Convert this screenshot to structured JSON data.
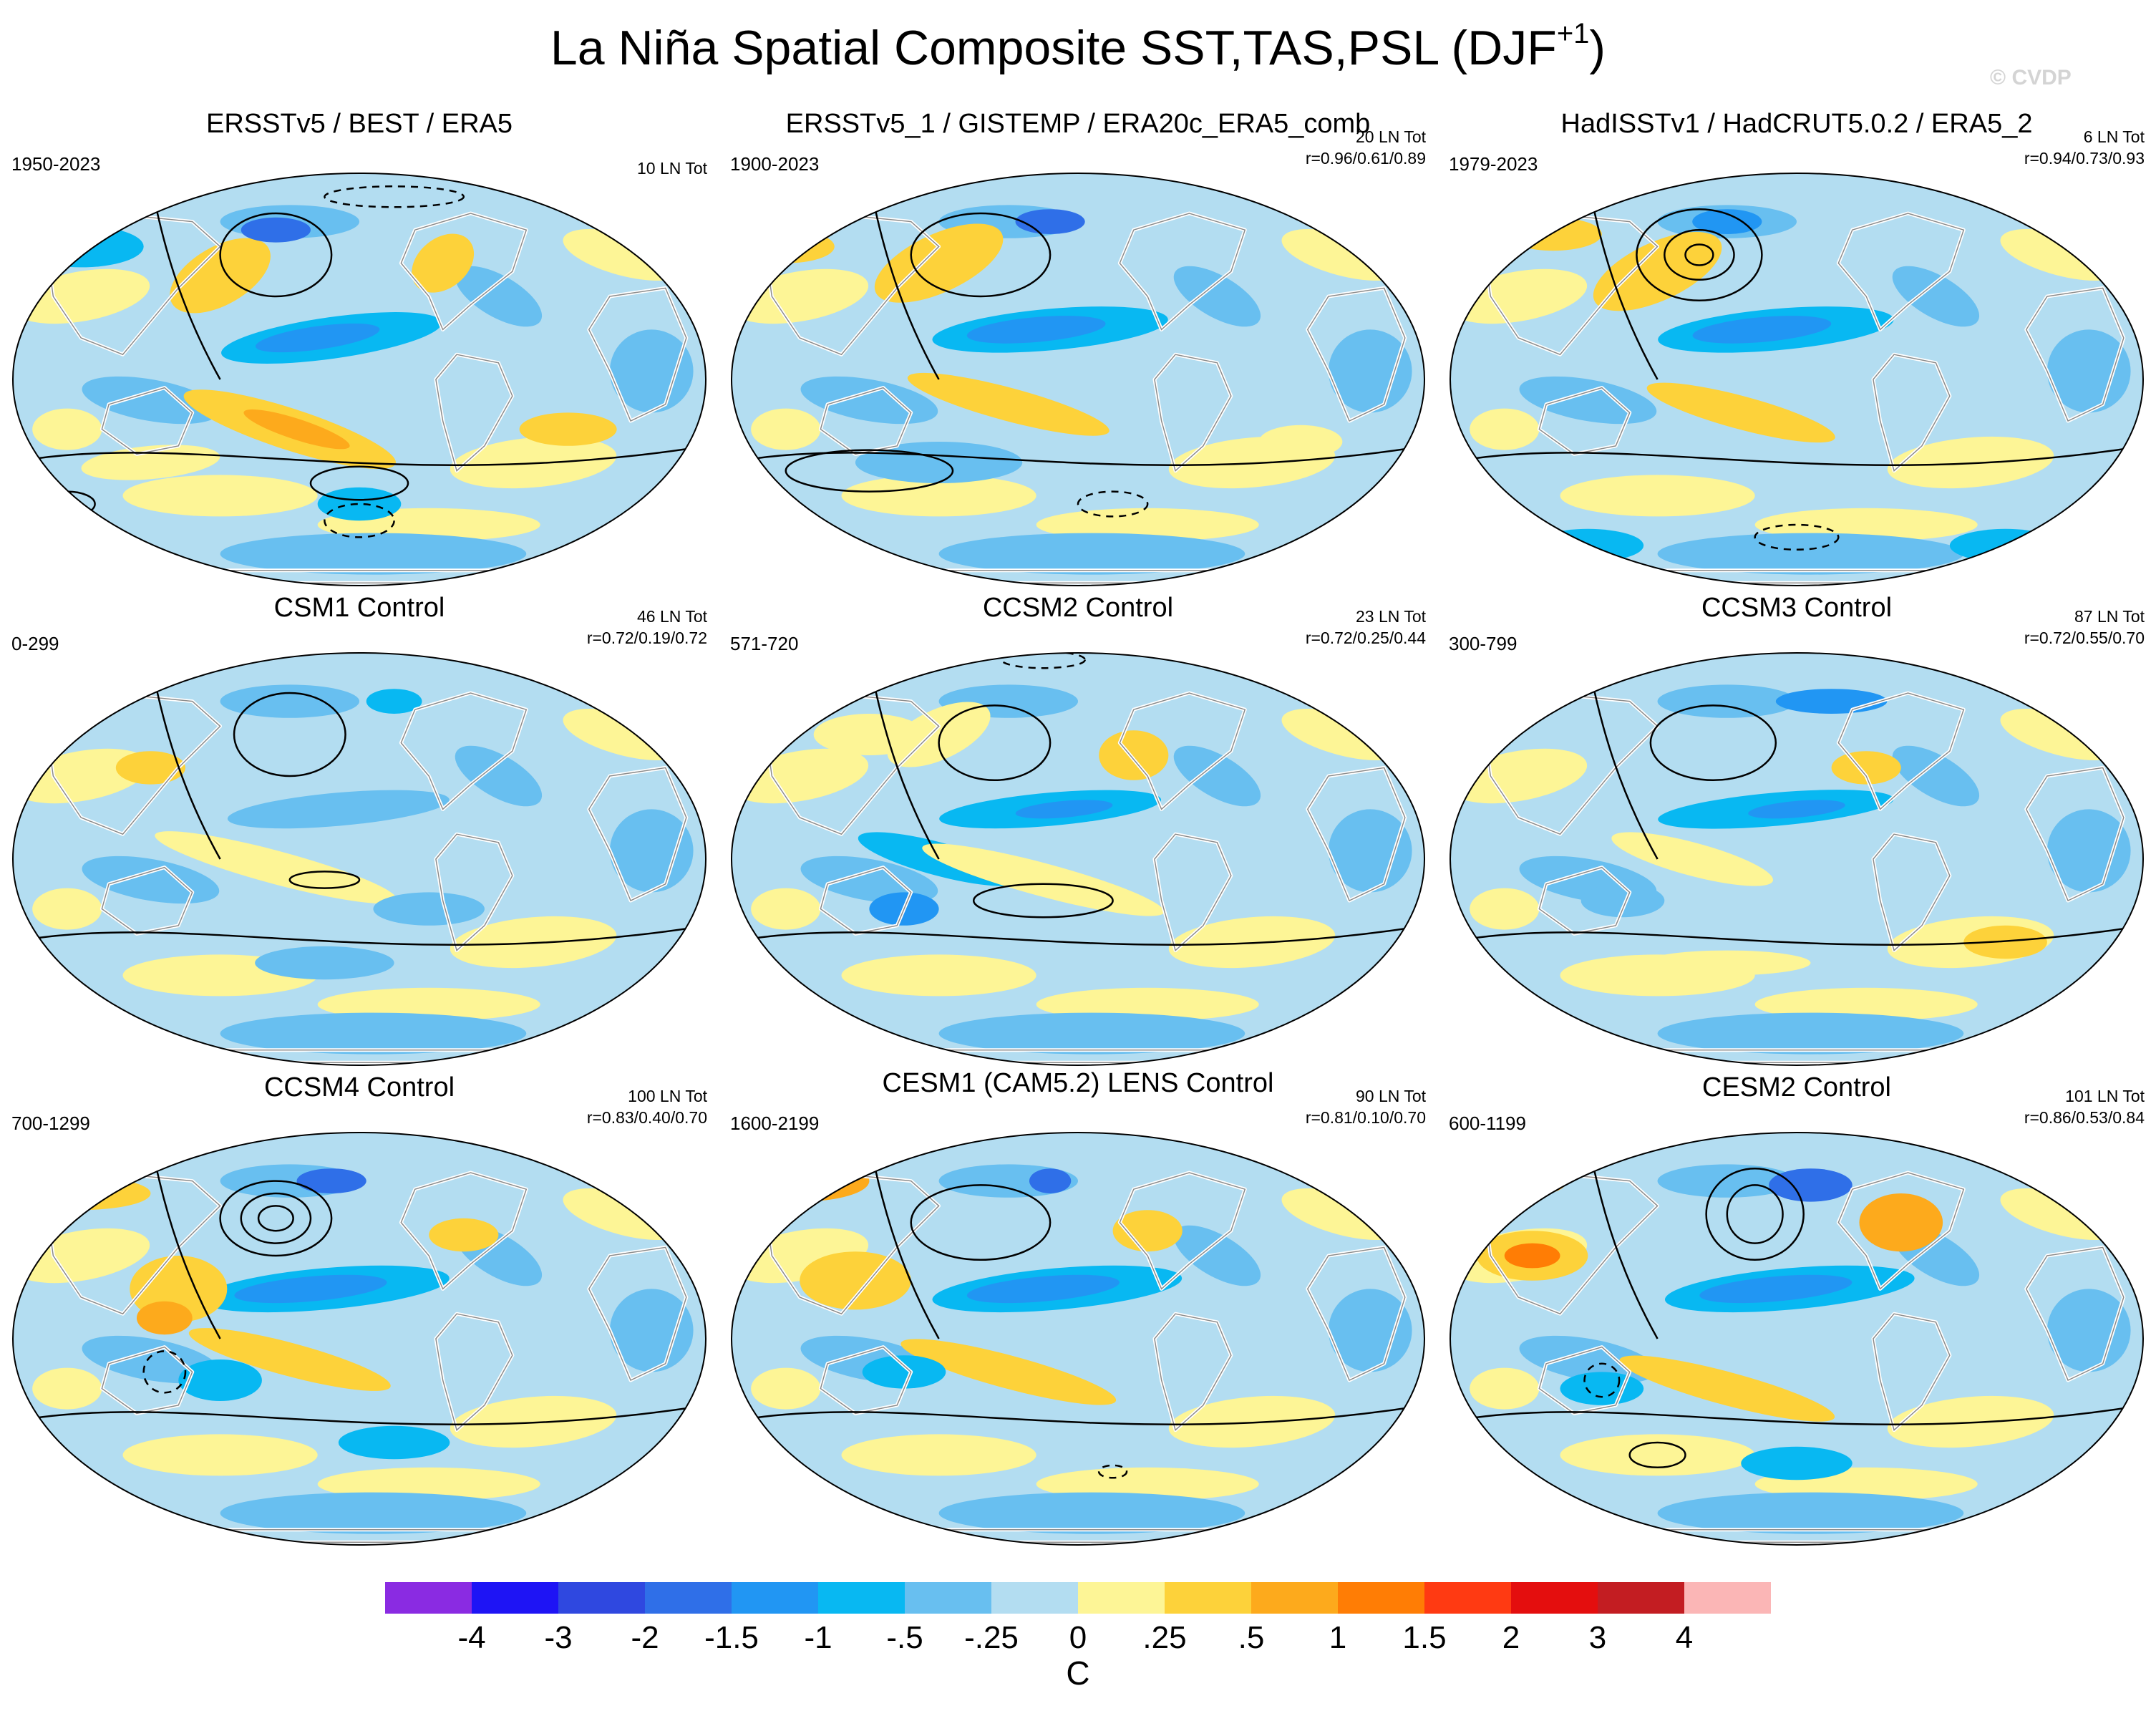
{
  "title": "La Niña Spatial Composite SST,TAS,PSL (DJF",
  "title_superscript": "+1",
  "title_close": ")",
  "watermark": "© CVDP",
  "panels": [
    {
      "title": "ERSSTv5 / BEST / ERA5",
      "period": "1950-2023",
      "count": "10 LN Tot",
      "corr": "",
      "style": "obsA"
    },
    {
      "title": "ERSSTv5_1 / GISTEMP / ERA20c_ERA5_comb",
      "period": "1900-2023",
      "count": "20 LN Tot",
      "corr": "r=0.96/0.61/0.89",
      "style": "obsB"
    },
    {
      "title": "HadISSTv1 / HadCRUT5.0.2 / ERA5_2",
      "period": "1979-2023",
      "count": "6 LN Tot",
      "corr": "r=0.94/0.73/0.93",
      "style": "obsC"
    },
    {
      "title": "CSM1 Control",
      "period": "0-299",
      "count": "46 LN Tot",
      "corr": "r=0.72/0.19/0.72",
      "style": "weak"
    },
    {
      "title": "CCSM2 Control",
      "period": "571-720",
      "count": "23 LN Tot",
      "corr": "r=0.72/0.25/0.44",
      "style": "ccsm2"
    },
    {
      "title": "CCSM3 Control",
      "period": "300-799",
      "count": "87 LN Tot",
      "corr": "r=0.72/0.55/0.70",
      "style": "ccsm3"
    },
    {
      "title": "CCSM4 Control",
      "period": "700-1299",
      "count": "100 LN Tot",
      "corr": "r=0.83/0.40/0.70",
      "style": "ccsm4"
    },
    {
      "title": "CESM1 (CAM5.2) LENS Control",
      "period": "1600-2199",
      "count": "90 LN Tot",
      "corr": "r=0.81/0.10/0.70",
      "style": "cesm1"
    },
    {
      "title": "CESM2 Control",
      "period": "600-1199",
      "count": "101 LN Tot",
      "corr": "r=0.86/0.53/0.84",
      "style": "cesm2"
    }
  ],
  "colorbar": {
    "colors": [
      "#8a2be2",
      "#1e14f5",
      "#2f48e0",
      "#2f6fe8",
      "#2196f3",
      "#08b8f2",
      "#68bff0",
      "#b3ddf1",
      "#fdf596",
      "#fdd23a",
      "#fdaa1c",
      "#ff7d05",
      "#ff3a12",
      "#e40e0e",
      "#c31d22",
      "#fbb6b6"
    ],
    "labels": [
      "-4",
      "-3",
      "-2",
      "-1.5",
      "-1",
      "-.5",
      "-.25",
      "0",
      ".25",
      ".5",
      "1",
      "1.5",
      "2",
      "3",
      "4"
    ],
    "units": "C"
  }
}
